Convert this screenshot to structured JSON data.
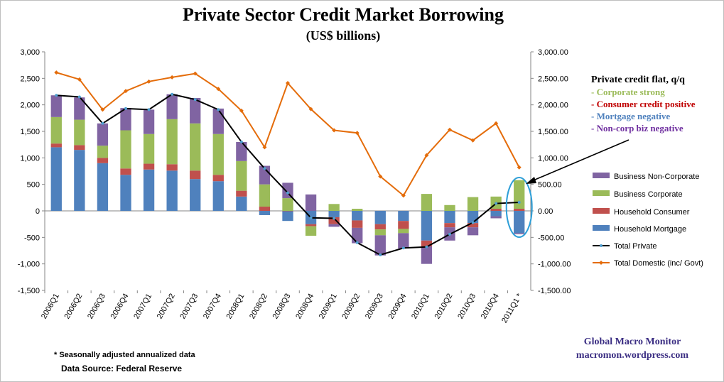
{
  "chart_data": {
    "type": "bar",
    "title": "Private Sector Credit Market Borrowing",
    "subtitle": "(US$ billions)",
    "categories": [
      "2006Q1",
      "2006Q2",
      "2006Q3",
      "2006Q4",
      "2007Q1",
      "2007Q2",
      "2007Q3",
      "2007Q4",
      "2008Q1",
      "2008Q2",
      "2008Q3",
      "2008Q4",
      "2009Q1",
      "2009Q2",
      "2009Q3",
      "2009Q4",
      "2010Q1",
      "2010Q2",
      "2010Q3",
      "2010Q4",
      "2011Q1 *"
    ],
    "stacked": true,
    "left_axis": {
      "ylim": [
        -1500,
        3000
      ],
      "ticks": [
        "3,000",
        "2,500",
        "2,000",
        "1,500",
        "1,000",
        "500",
        "0",
        "-500",
        "-1,000",
        "-1,500"
      ]
    },
    "right_axis": {
      "ylim": [
        -1500,
        3000
      ],
      "ticks": [
        "3,000.00",
        "2,500.00",
        "2,000.00",
        "1,500.00",
        "1,000.00",
        "500.00",
        "0.00",
        "-500.00",
        "-1,000.00",
        "-1,500.00"
      ]
    },
    "grid": false,
    "legend_position": "right",
    "bar_series": [
      {
        "name": "Household Mortgage",
        "color": "#4f81bd",
        "values": [
          1200,
          1150,
          900,
          680,
          780,
          760,
          600,
          560,
          270,
          -80,
          -190,
          -250,
          -120,
          -180,
          -250,
          -190,
          -560,
          -230,
          -230,
          -100,
          -420
        ]
      },
      {
        "name": "Household Consumer",
        "color": "#c0504d",
        "values": [
          70,
          90,
          100,
          120,
          110,
          120,
          160,
          120,
          110,
          80,
          0,
          -40,
          -130,
          -140,
          -100,
          -150,
          -110,
          -80,
          -80,
          40,
          40
        ]
      },
      {
        "name": "Business Corporate",
        "color": "#9bbb59",
        "values": [
          500,
          480,
          230,
          720,
          560,
          850,
          890,
          770,
          560,
          420,
          240,
          -180,
          130,
          40,
          -110,
          -80,
          320,
          110,
          260,
          230,
          540
        ]
      },
      {
        "name": "Business Non-Corporate",
        "color": "#8064a2",
        "values": [
          410,
          420,
          420,
          420,
          460,
          470,
          480,
          480,
          360,
          350,
          290,
          310,
          -50,
          -290,
          -380,
          -290,
          -330,
          -250,
          -150,
          -40,
          -20
        ]
      }
    ],
    "line_series": [
      {
        "name": "Total Private",
        "color": "#000000",
        "values": [
          2180,
          2150,
          1650,
          1930,
          1910,
          2200,
          2100,
          1910,
          1300,
          800,
          340,
          -130,
          -140,
          -600,
          -830,
          -700,
          -680,
          -440,
          -220,
          140,
          160
        ]
      },
      {
        "name": "Total Domestic (inc/ Govt)",
        "color": "#e46c0a",
        "values": [
          2610,
          2480,
          1910,
          2260,
          2440,
          2520,
          2590,
          2300,
          1890,
          1200,
          2410,
          1920,
          1520,
          1470,
          650,
          290,
          1050,
          1530,
          1330,
          1650,
          820
        ]
      }
    ],
    "legend": [
      "Business Non-Corporate",
      "Business Corporate",
      "Household Consumer",
      "Household Mortgage",
      "Total Private",
      "Total Domestic (inc/ Govt)"
    ]
  },
  "annotation": {
    "heading": "Private credit flat, q/q",
    "lines": [
      {
        "text": "- Corporate strong",
        "color": "#9bbb59"
      },
      {
        "text": "- Consumer credit positive",
        "color": "#c00000"
      },
      {
        "text": "- Mortgage negative",
        "color": "#4f81bd"
      },
      {
        "text": "- Non-corp biz negative",
        "color": "#7030a0"
      }
    ]
  },
  "credit": {
    "line1": "Global Macro Monitor",
    "line2": "macromon.wordpress.com"
  },
  "footnote": "* Seasonally adjusted annualized data",
  "source": "Data Source:  Federal Reserve"
}
